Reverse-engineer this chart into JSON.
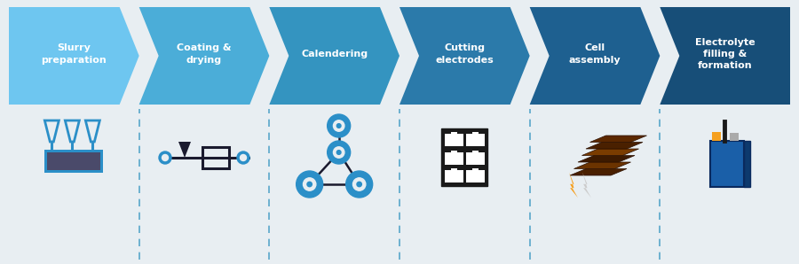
{
  "background_color": "#e8eef2",
  "steps": [
    "Slurry\npreparation",
    "Coating &\ndrying",
    "Calendering",
    "Cutting\nelectrodes",
    "Cell\nassembly",
    "Electrolyte\nfilling &\nformation"
  ],
  "arrow_colors": [
    "#6ec6f0",
    "#4badd8",
    "#3494c0",
    "#2b7aaa",
    "#1e6090",
    "#174e78"
  ],
  "text_color": "#ffffff",
  "divider_color": "#3494c0",
  "icon_color_blue": "#2b8fc8",
  "icon_color_dark": "#1a1a2e",
  "icon_color_orange": "#f5a020",
  "icon_color_brown": "#5c2a00",
  "icon_color_brown2": "#3d1a00",
  "icon_color_gray": "#aaaaaa",
  "icon_color_battery_blue": "#1a5fa8"
}
